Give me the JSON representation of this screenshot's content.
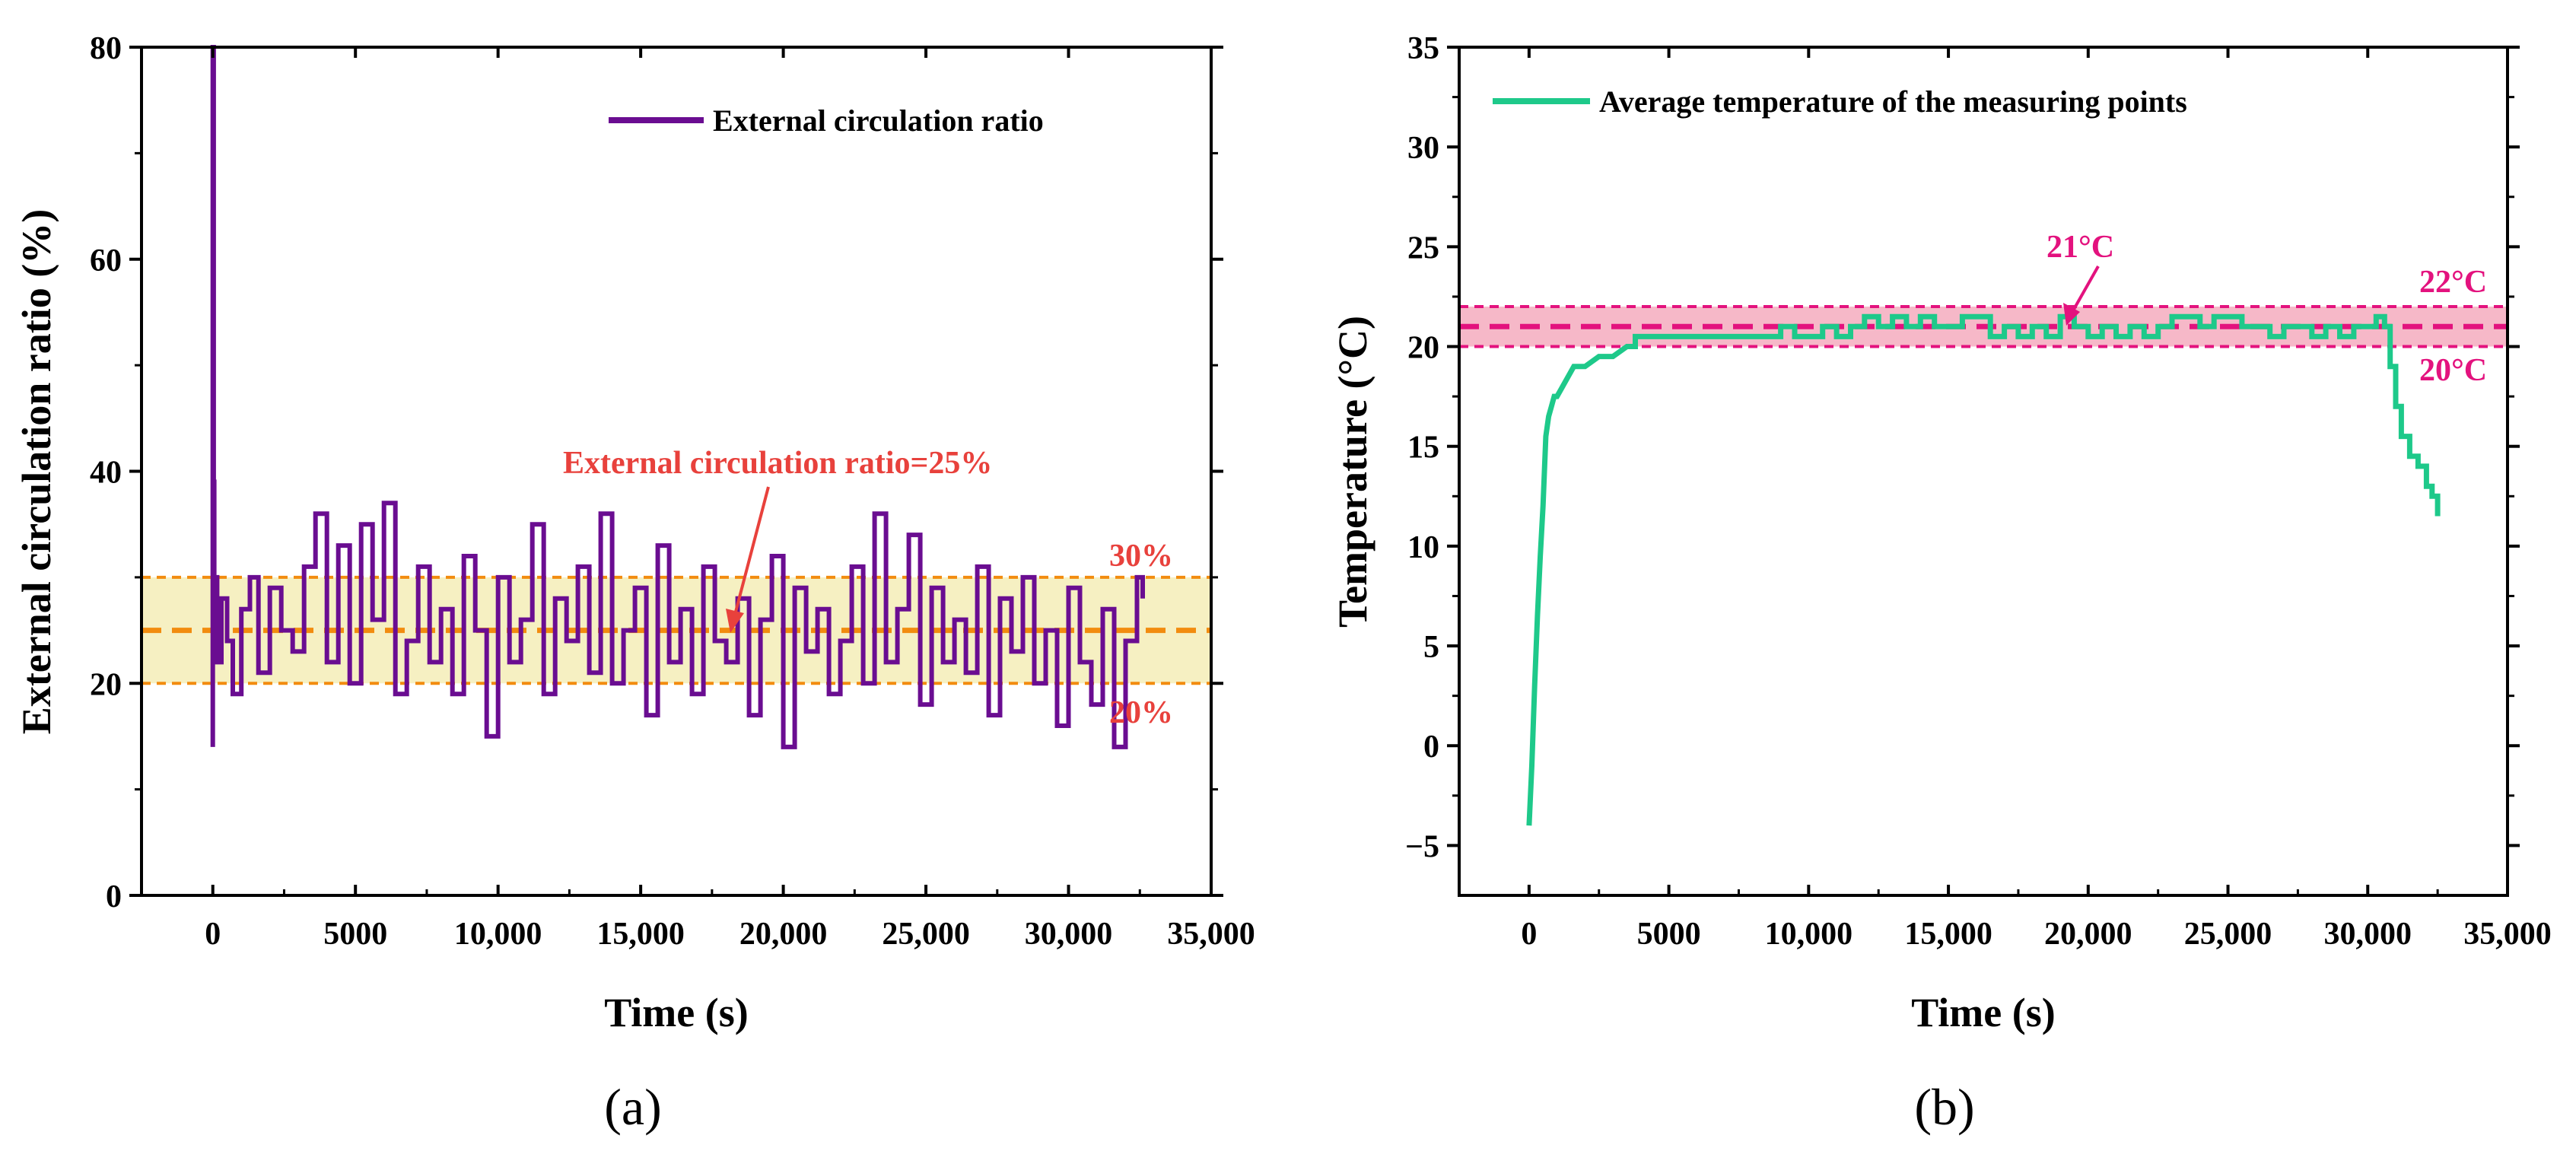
{
  "chart_data": [
    {
      "panel": "(a)",
      "type": "line",
      "xlabel": "Time (s)",
      "ylabel": "External circulation ratio (%)",
      "xlim": [
        -2500,
        35000
      ],
      "ylim": [
        0,
        80
      ],
      "xticks": [
        0,
        5000,
        10000,
        15000,
        20000,
        25000,
        30000,
        35000
      ],
      "xtick_labels": [
        "0",
        "5000",
        "10,000",
        "15,000",
        "20,000",
        "25,000",
        "30,000",
        "35,000"
      ],
      "yticks": [
        0,
        20,
        40,
        60,
        80
      ],
      "ytick_labels": [
        "0",
        "20",
        "40",
        "60",
        "80"
      ],
      "legend": {
        "label": "External circulation ratio",
        "placement": "top-right"
      },
      "colors": {
        "series": "#6a0d91",
        "band": "#f6f0c2",
        "ref": "#f28c0f",
        "annotation": "#e8413c"
      },
      "band": {
        "low": 20,
        "high": 30
      },
      "reference_line": 25,
      "series": [
        {
          "name": "External circulation ratio",
          "description": "Noisy step signal fluctuating mostly between 20% and 30% with occasional excursions to 14-38%; initial spike to 80% at t=0",
          "x": [
            0,
            0,
            30,
            50,
            80,
            150,
            300,
            500,
            700,
            1000,
            1300,
            1600,
            2000,
            2400,
            2800,
            3200,
            3600,
            4000,
            4400,
            4800,
            5200,
            5600,
            6000,
            6400,
            6800,
            7200,
            7600,
            8000,
            8400,
            8800,
            9200,
            9600,
            10000,
            10400,
            10800,
            11200,
            11600,
            12000,
            12400,
            12800,
            13200,
            13600,
            14000,
            14400,
            14800,
            15200,
            15600,
            16000,
            16400,
            16800,
            17200,
            17600,
            18000,
            18400,
            18800,
            19200,
            19600,
            20000,
            20400,
            20800,
            21200,
            21600,
            22000,
            22400,
            22800,
            23200,
            23600,
            24000,
            24400,
            24800,
            25200,
            25600,
            26000,
            26400,
            26800,
            27200,
            27600,
            28000,
            28400,
            28800,
            29200,
            29600,
            30000,
            30400,
            30800,
            31200,
            31600,
            32000,
            32400,
            32600
          ],
          "y": [
            14,
            80,
            39,
            26,
            30,
            22,
            28,
            24,
            19,
            27,
            30,
            21,
            29,
            25,
            23,
            31,
            36,
            22,
            33,
            20,
            35,
            26,
            37,
            19,
            24,
            31,
            22,
            27,
            19,
            32,
            25,
            15,
            30,
            22,
            26,
            35,
            19,
            28,
            24,
            31,
            21,
            36,
            20,
            25,
            29,
            17,
            33,
            22,
            27,
            19,
            31,
            24,
            22,
            28,
            17,
            26,
            32,
            14,
            29,
            23,
            27,
            19,
            24,
            31,
            20,
            36,
            22,
            27,
            34,
            18,
            29,
            22,
            26,
            21,
            31,
            17,
            28,
            23,
            30,
            20,
            25,
            16,
            29,
            22,
            18,
            27,
            14,
            24,
            30,
            28
          ]
        }
      ],
      "annotations": {
        "ref_label": "External circulation ratio=25%",
        "upper_label": "30%",
        "lower_label": "20%"
      }
    },
    {
      "panel": "(b)",
      "type": "line",
      "xlabel": "Time (s)",
      "ylabel": "Temperature (°C)",
      "xlim": [
        -2500,
        35000
      ],
      "ylim": [
        -7.5,
        35
      ],
      "xticks": [
        0,
        5000,
        10000,
        15000,
        20000,
        25000,
        30000,
        35000
      ],
      "xtick_labels": [
        "0",
        "5000",
        "10,000",
        "15,000",
        "20,000",
        "25,000",
        "30,000",
        "35,000"
      ],
      "yticks": [
        -5,
        0,
        5,
        10,
        15,
        20,
        25,
        30,
        35
      ],
      "ytick_labels": [
        "−5",
        "0",
        "5",
        "10",
        "15",
        "20",
        "25",
        "30",
        "35"
      ],
      "legend": {
        "label": "Average temperature of the measuring points",
        "placement": "top-left"
      },
      "colors": {
        "series": "#1ec98a",
        "band": "#f6b8c8",
        "ref": "#e3127e",
        "annotation": "#e3127e"
      },
      "band": {
        "low": 20,
        "high": 22
      },
      "reference_line": 21,
      "series": [
        {
          "name": "Average temperature of the measuring points",
          "x": [
            0,
            100,
            200,
            300,
            400,
            500,
            600,
            700,
            800,
            900,
            1000,
            1200,
            1400,
            1600,
            1800,
            2000,
            2500,
            3000,
            3500,
            3800,
            4000,
            5000,
            6000,
            7000,
            8000,
            9000,
            9500,
            10000,
            10500,
            11000,
            11500,
            12000,
            12500,
            13000,
            13500,
            14000,
            14500,
            15000,
            15500,
            16000,
            16500,
            17000,
            17500,
            18000,
            18500,
            19000,
            19500,
            20000,
            20500,
            21000,
            21500,
            22000,
            22500,
            23000,
            23500,
            24000,
            24500,
            25000,
            25500,
            26000,
            26500,
            27000,
            27500,
            28000,
            28500,
            29000,
            29500,
            30000,
            30300,
            30600,
            30800,
            31000,
            31200,
            31500,
            31800,
            32100,
            32300,
            32500
          ],
          "y": [
            -4,
            -1,
            3,
            6.5,
            9.5,
            12,
            15.5,
            16.5,
            17,
            17.5,
            17.5,
            18,
            18.5,
            19,
            19,
            19,
            19.5,
            19.5,
            20,
            20.5,
            20.5,
            20.5,
            20.5,
            20.5,
            20.5,
            21,
            20.5,
            20.5,
            21,
            20.5,
            21,
            21.5,
            21,
            21.5,
            21,
            21.5,
            21,
            21,
            21.5,
            21.5,
            20.5,
            21,
            20.5,
            21,
            20.5,
            21.5,
            21,
            20.5,
            21,
            20.5,
            21,
            20.5,
            21,
            21.5,
            21.5,
            21,
            21.5,
            21.5,
            21,
            21,
            20.5,
            21,
            21,
            20.5,
            21,
            20.5,
            21,
            21,
            21.5,
            21,
            19,
            17,
            15.5,
            14.5,
            14,
            13,
            12.5,
            11.5
          ]
        }
      ],
      "annotations": {
        "ref_label": "21°C",
        "upper_label": "22°C",
        "lower_label": "20°C"
      }
    }
  ]
}
